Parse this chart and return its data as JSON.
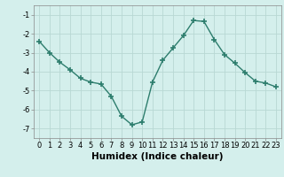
{
  "x": [
    0,
    1,
    2,
    3,
    4,
    5,
    6,
    7,
    8,
    9,
    10,
    11,
    12,
    13,
    14,
    15,
    16,
    17,
    18,
    19,
    20,
    21,
    22,
    23
  ],
  "y": [
    -2.4,
    -3.0,
    -3.5,
    -3.9,
    -4.35,
    -4.55,
    -4.65,
    -5.3,
    -6.35,
    -6.8,
    -6.65,
    -4.55,
    -3.4,
    -2.75,
    -2.1,
    -1.3,
    -1.35,
    -2.3,
    -3.1,
    -3.55,
    -4.05,
    -4.5,
    -4.6,
    -4.8
  ],
  "line_color": "#2d7d6d",
  "marker": "+",
  "marker_size": 4,
  "marker_lw": 1.2,
  "bg_color": "#d4efec",
  "grid_color": "#b8d8d4",
  "xlabel": "Humidex (Indice chaleur)",
  "xlim": [
    -0.5,
    23.5
  ],
  "ylim": [
    -7.5,
    -0.5
  ],
  "yticks": [
    -7,
    -6,
    -5,
    -4,
    -3,
    -2,
    -1
  ],
  "xticks": [
    0,
    1,
    2,
    3,
    4,
    5,
    6,
    7,
    8,
    9,
    10,
    11,
    12,
    13,
    14,
    15,
    16,
    17,
    18,
    19,
    20,
    21,
    22,
    23
  ],
  "xtick_labels": [
    "0",
    "1",
    "2",
    "3",
    "4",
    "5",
    "6",
    "7",
    "8",
    "9",
    "10",
    "11",
    "12",
    "13",
    "14",
    "15",
    "16",
    "17",
    "18",
    "19",
    "20",
    "21",
    "22",
    "23"
  ],
  "tick_fontsize": 6,
  "xlabel_fontsize": 7.5,
  "linewidth": 1.0
}
